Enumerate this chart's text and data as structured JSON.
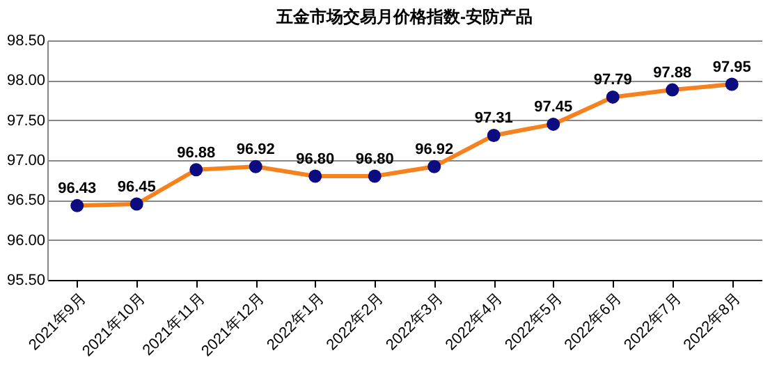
{
  "chart_data": {
    "type": "line",
    "title": "五金市场交易月价格指数-安防产品",
    "categories": [
      "2021年9月",
      "2021年10月",
      "2021年11月",
      "2021年12月",
      "2022年1月",
      "2022年2月",
      "2022年3月",
      "2022年4月",
      "2022年5月",
      "2022年6月",
      "2022年7月",
      "2022年8月"
    ],
    "series": [
      {
        "color": "#f5821f",
        "values": [
          96.43,
          96.45,
          96.88,
          96.92,
          96.8,
          96.8,
          96.92,
          97.31,
          97.45,
          97.79,
          97.88,
          97.95
        ]
      },
      {
        "type": "scatter",
        "color": "#0c0c80",
        "values": [
          96.43,
          96.45,
          96.88,
          96.92,
          96.8,
          96.8,
          96.92,
          97.31,
          97.45,
          97.79,
          97.88,
          97.95
        ],
        "value_labels": [
          "96.43",
          "96.45",
          "96.88",
          "96.92",
          "96.80",
          "96.80",
          "96.92",
          "97.31",
          "97.45",
          "97.79",
          "97.88",
          "97.95"
        ]
      }
    ],
    "grid": "y",
    "ylim": [
      95.5,
      98.5
    ],
    "yticks": [
      {
        "value": 95.5,
        "label": "95.50"
      },
      {
        "value": 96,
        "label": "96.00"
      },
      {
        "value": 96.5,
        "label": "96.50"
      },
      {
        "value": 97,
        "label": "97.00"
      },
      {
        "value": 97.5,
        "label": "97.50"
      },
      {
        "value": 98,
        "label": "98.00"
      },
      {
        "value": 98.5,
        "label": "98.50"
      }
    ]
  }
}
